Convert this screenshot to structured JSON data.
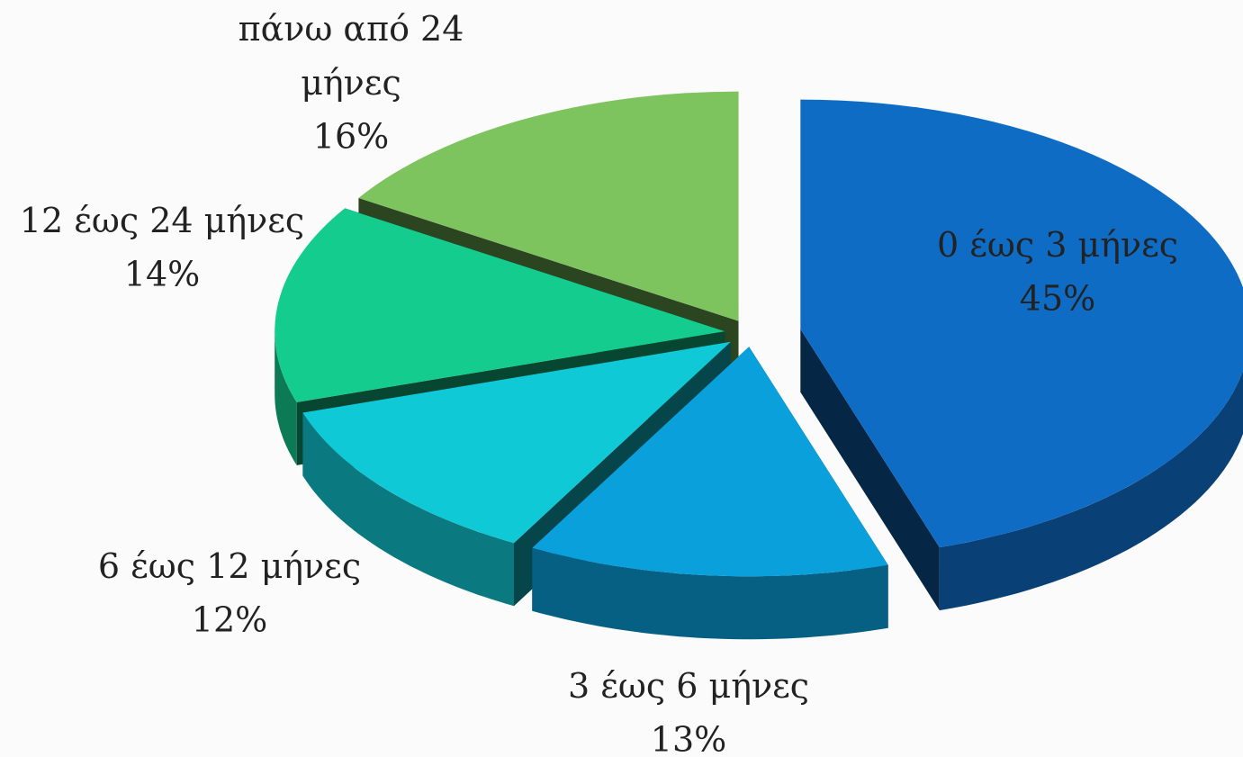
{
  "chart_data": {
    "type": "pie",
    "categories": [
      "0 έως 3 μήνες",
      "3 έως 6 μήνες",
      "6 έως 12 μήνες",
      "12 έως 24 μήνες",
      "πάνω από 24 μήνες"
    ],
    "values": [
      45,
      13,
      12,
      14,
      16
    ],
    "value_labels": [
      "45%",
      "13%",
      "12%",
      "14%",
      "16%"
    ],
    "colors": [
      "#0f6cc4",
      "#0aa0dc",
      "#10c9d6",
      "#14cc8e",
      "#7dc45e"
    ]
  }
}
